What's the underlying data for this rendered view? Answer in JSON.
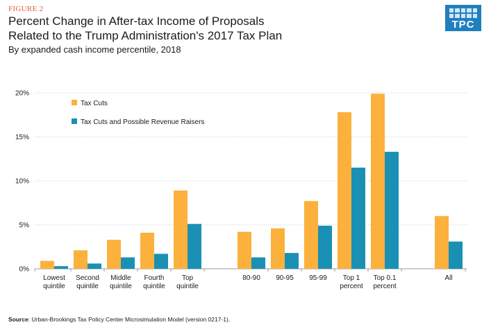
{
  "header": {
    "figure_label": "FIGURE 2",
    "title_line1": "Percent Change in After-tax Income of Proposals",
    "title_line2": "Related to the Trump Administration's 2017 Tax Plan",
    "subtitle": "By expanded cash income percentile, 2018"
  },
  "logo": {
    "text": "TPC"
  },
  "source": {
    "label": "Source",
    "text": ": Urban-Brookings Tax Policy Center Microsimulation Model (version 0217-1)."
  },
  "colors": {
    "tax_cuts": "#fbb13c",
    "raisers": "#1a90b5",
    "grid": "#cccccc",
    "axis": "#999999"
  },
  "chart_data": {
    "type": "bar",
    "categories": [
      [
        "Lowest",
        "quintile"
      ],
      [
        "Second",
        "quintile"
      ],
      [
        "Middle",
        "quintile"
      ],
      [
        "Fourth",
        "quintile"
      ],
      [
        "Top",
        "quintile"
      ],
      [
        "80-90"
      ],
      [
        "90-95"
      ],
      [
        "95-99"
      ],
      [
        "Top 1",
        "percent"
      ],
      [
        "Top 0.1",
        "percent"
      ],
      [
        "All"
      ]
    ],
    "series": [
      {
        "name": "Tax Cuts",
        "values": [
          0.9,
          2.1,
          3.3,
          4.1,
          8.9,
          4.2,
          4.6,
          7.7,
          17.8,
          19.9,
          6.0
        ]
      },
      {
        "name": "Tax Cuts and Possible Revenue Raisers",
        "values": [
          0.3,
          0.6,
          1.3,
          1.7,
          5.1,
          1.3,
          1.8,
          4.9,
          11.5,
          13.3,
          3.1
        ]
      }
    ],
    "ylim": [
      0,
      20
    ],
    "yticks": [
      "0%",
      "5%",
      "10%",
      "15%",
      "20%"
    ],
    "ytick_values": [
      0,
      5,
      10,
      15,
      20
    ],
    "grid": true,
    "legend_position": "top-left"
  }
}
